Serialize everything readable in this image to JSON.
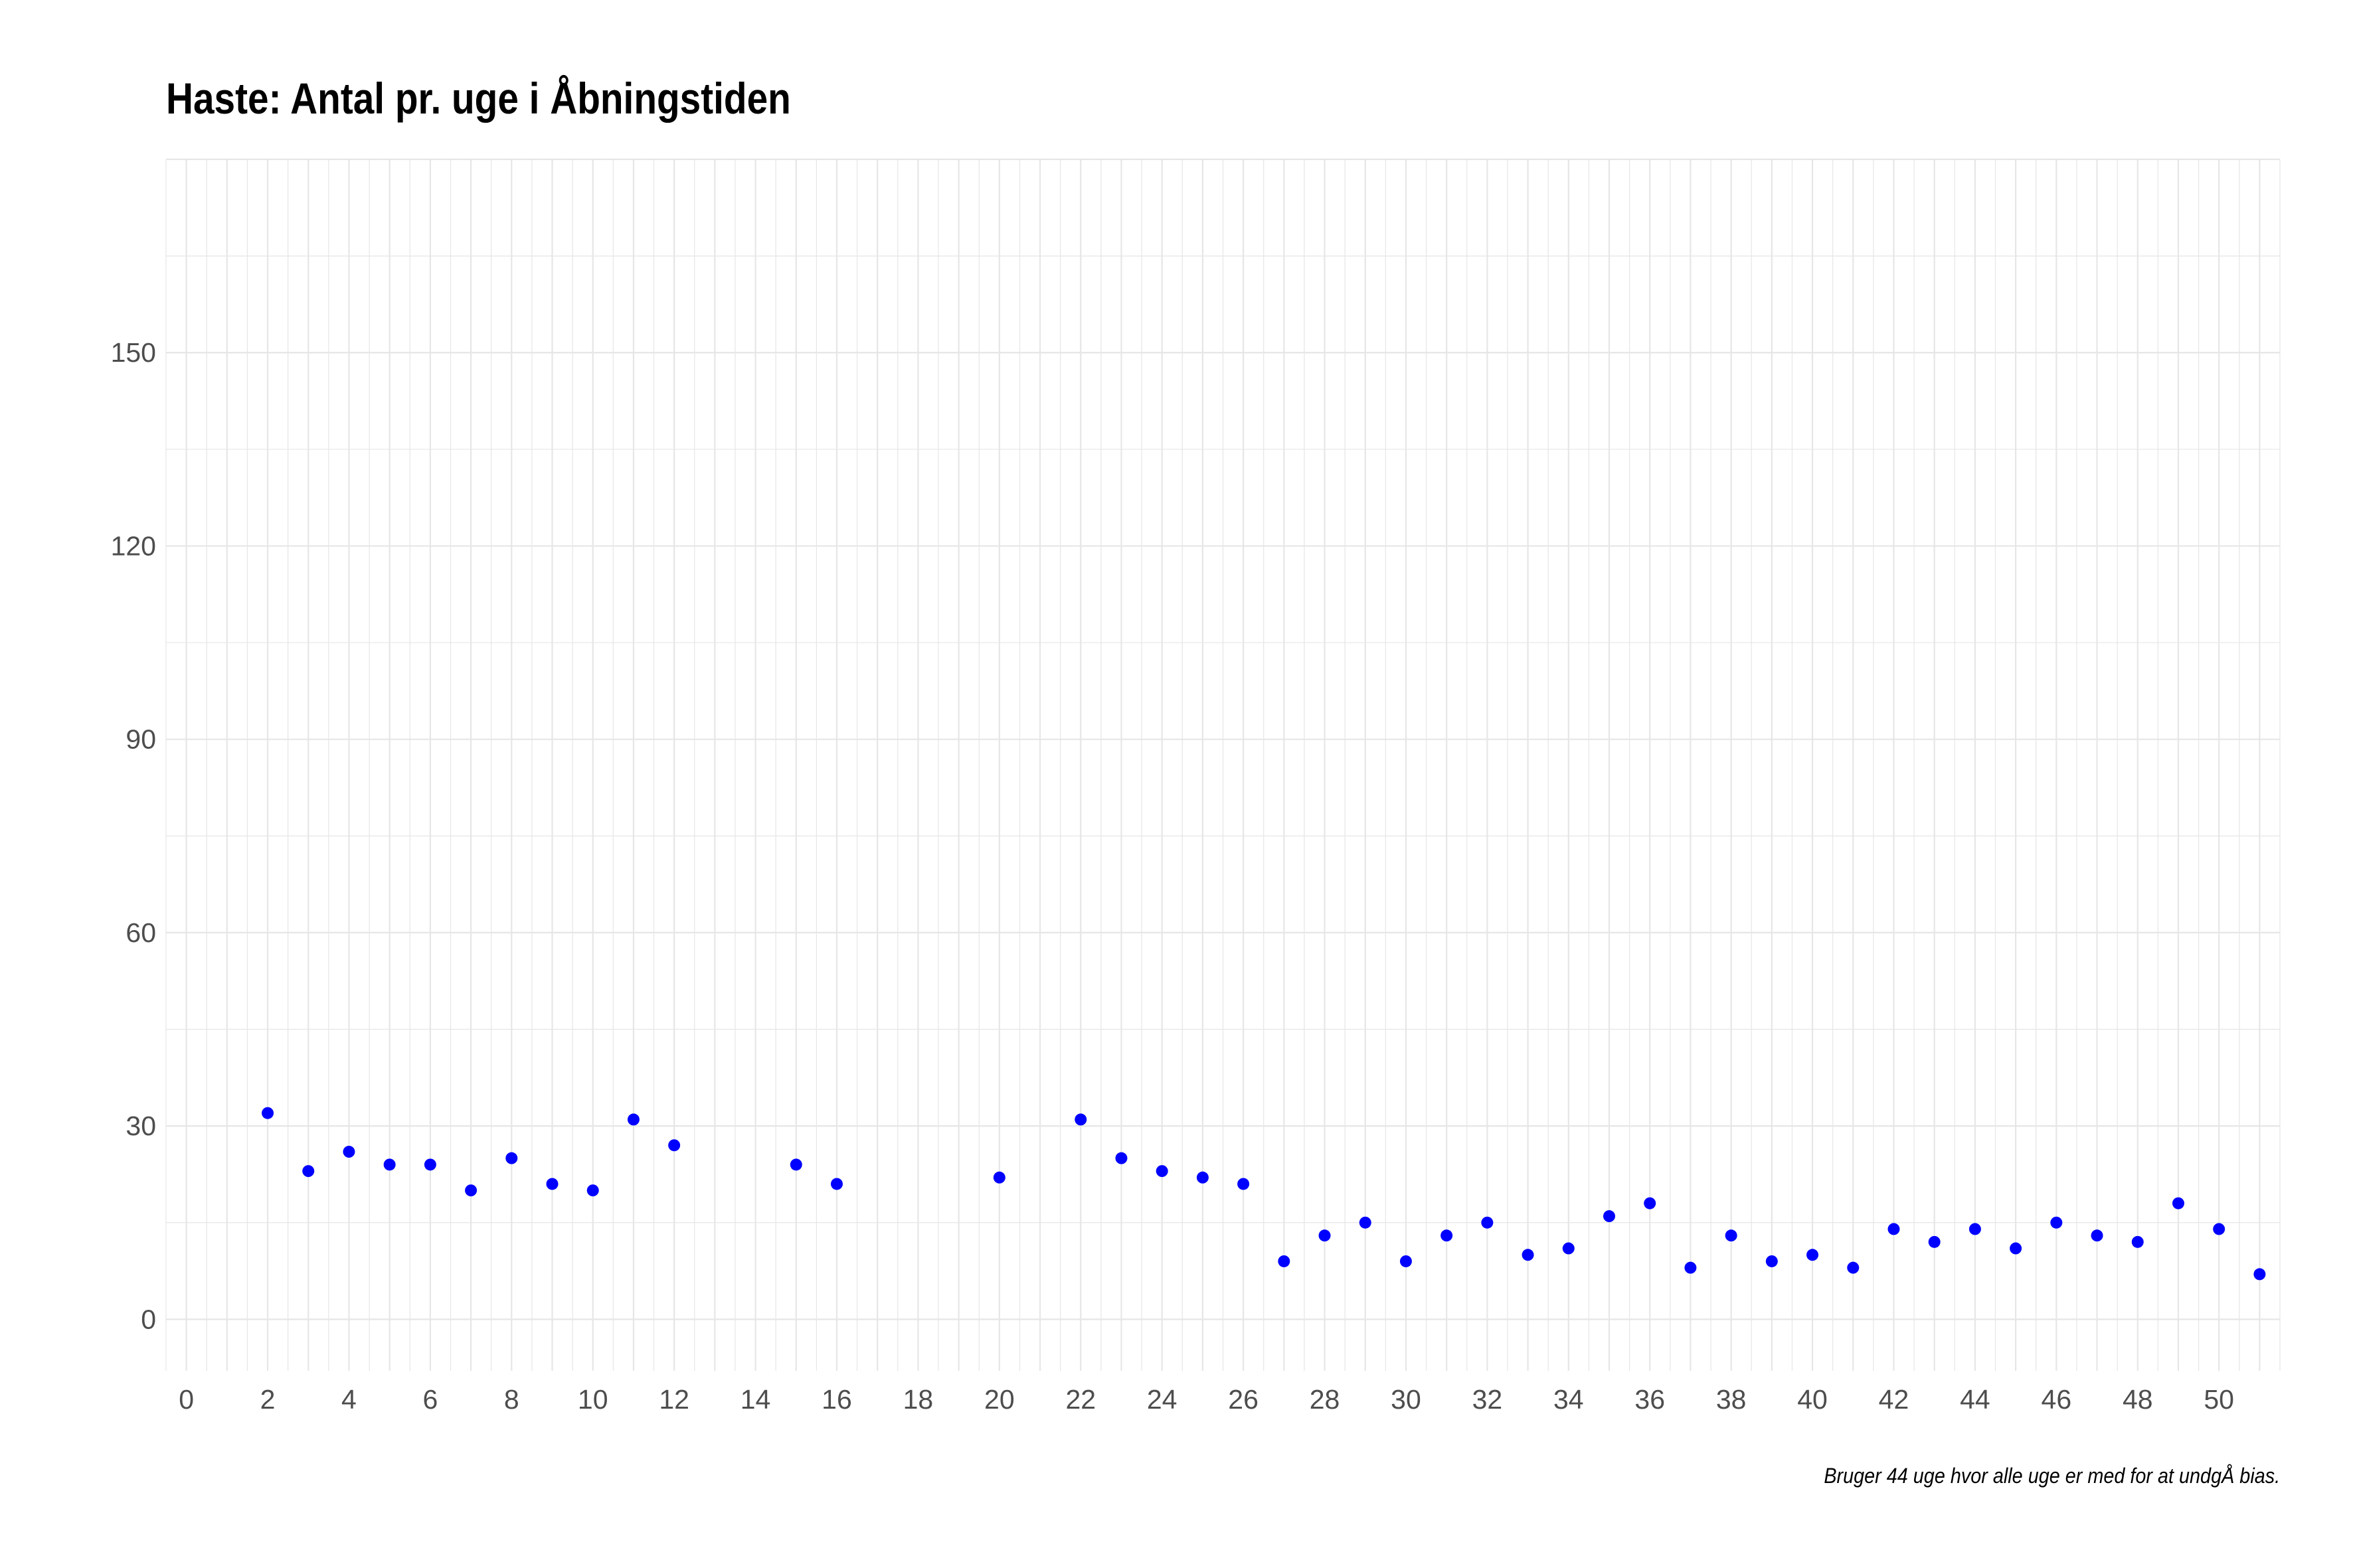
{
  "chart_data": {
    "type": "scatter",
    "title": "Haste: Antal pr. uge i Åbningstiden",
    "caption": "Bruger 44 uge hvor alle uge er med for at undgÅ bias.",
    "xlabel": "",
    "ylabel": "",
    "xlim": [
      -0.5,
      51.5
    ],
    "ylim": [
      -8,
      180
    ],
    "x_ticks": [
      0,
      2,
      4,
      6,
      8,
      10,
      12,
      14,
      16,
      18,
      20,
      22,
      24,
      26,
      28,
      30,
      32,
      34,
      36,
      38,
      40,
      42,
      44,
      46,
      48,
      50
    ],
    "y_ticks": [
      0,
      30,
      60,
      90,
      120,
      150
    ],
    "grid": true,
    "point_color": "#0000ff",
    "grid_color": "#e6e6e6",
    "x": [
      2,
      3,
      4,
      5,
      6,
      7,
      8,
      9,
      10,
      11,
      12,
      15,
      16,
      20,
      22,
      23,
      24,
      25,
      26,
      27,
      28,
      29,
      30,
      31,
      32,
      33,
      34,
      35,
      36,
      37,
      38,
      39,
      40,
      41,
      42,
      43,
      44,
      45,
      46,
      47,
      48,
      49,
      50,
      51
    ],
    "y": [
      32,
      23,
      26,
      24,
      24,
      20,
      25,
      21,
      20,
      31,
      27,
      24,
      21,
      22,
      31,
      25,
      23,
      22,
      21,
      9,
      13,
      15,
      9,
      13,
      15,
      10,
      11,
      16,
      18,
      8,
      13,
      9,
      10,
      8,
      14,
      12,
      14,
      11,
      15,
      13,
      12,
      18,
      14,
      7
    ]
  }
}
